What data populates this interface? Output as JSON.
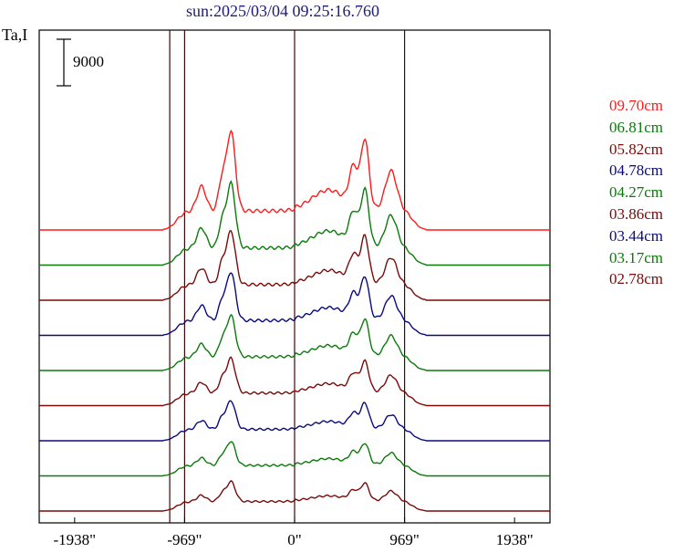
{
  "title": "sun:2025/03/04 09:25:16.760",
  "ylabel": "Ta,I",
  "scale_bar_label": "9000",
  "colors": {
    "red": "#ff1a1a",
    "green": "#0a7a0a",
    "darkred": "#7a0a0a",
    "navy": "#0a0a80"
  },
  "chart_data": {
    "type": "line",
    "title": "sun:2025/03/04 09:25:16.760",
    "ylabel": "Ta,I",
    "xlabel": "",
    "xlim": [
      -2250,
      2250
    ],
    "x_ticks": [
      -1938,
      -969,
      0,
      969,
      1938
    ],
    "x_tick_labels": [
      "-1938\"",
      "-969\"",
      "0\"",
      "969\"",
      "1938\""
    ],
    "vertical_lines": [
      -1100,
      -969,
      0,
      969
    ],
    "scale_bar": 9000,
    "grid": false,
    "legend_position": "right",
    "series": [
      {
        "name": "09.70cm",
        "color": "#ff1a1a",
        "offset": 9,
        "amp": 1.0
      },
      {
        "name": "06.81cm",
        "color": "#0a7a0a",
        "offset": 8,
        "amp": 0.9
      },
      {
        "name": "05.82cm",
        "color": "#7a0a0a",
        "offset": 7,
        "amp": 0.82
      },
      {
        "name": "04.78cm",
        "color": "#0a0a80",
        "offset": 6,
        "amp": 0.78
      },
      {
        "name": "04.27cm",
        "color": "#0a7a0a",
        "offset": 5,
        "amp": 0.72
      },
      {
        "name": "03.86cm",
        "color": "#7a0a0a",
        "offset": 4,
        "amp": 0.66
      },
      {
        "name": "03.44cm",
        "color": "#0a0a80",
        "offset": 3,
        "amp": 0.6
      },
      {
        "name": "03.17cm",
        "color": "#0a7a0a",
        "offset": 2,
        "amp": 0.55
      },
      {
        "name": "02.78cm",
        "color": "#7a0a0a",
        "offset": 1,
        "amp": 0.5
      }
    ]
  },
  "legend": [
    {
      "label": "09.70cm",
      "color": "#ff1a1a"
    },
    {
      "label": "06.81cm",
      "color": "#0a7a0a"
    },
    {
      "label": "05.82cm",
      "color": "#7a0a0a"
    },
    {
      "label": "04.78cm",
      "color": "#0a0a80"
    },
    {
      "label": "04.27cm",
      "color": "#0a7a0a"
    },
    {
      "label": "03.86cm",
      "color": "#7a0a0a"
    },
    {
      "label": "03.44cm",
      "color": "#0a0a80"
    },
    {
      "label": "03.17cm",
      "color": "#0a7a0a"
    },
    {
      "label": "02.78cm",
      "color": "#7a0a0a"
    }
  ]
}
